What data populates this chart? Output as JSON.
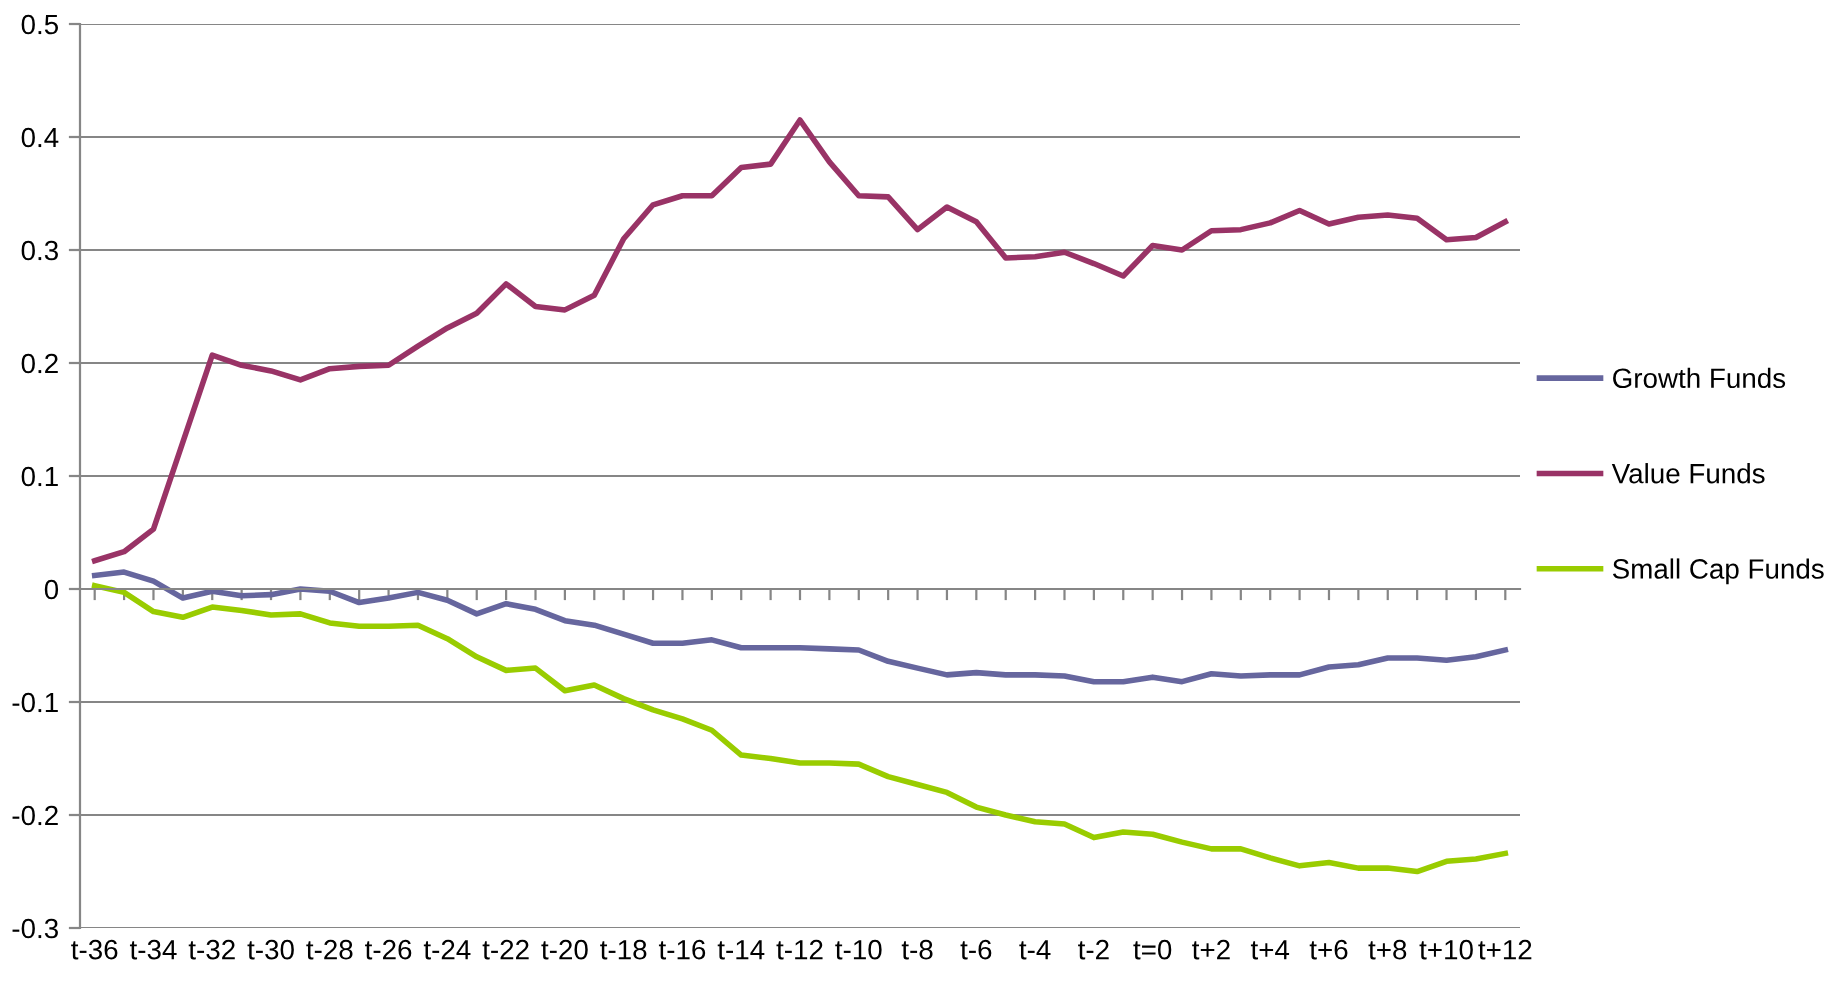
{
  "chart_data": {
    "type": "line",
    "categories": [
      "t-36",
      null,
      "t-34",
      null,
      "t-32",
      null,
      "t-30",
      null,
      "t-28",
      null,
      "t-26",
      null,
      "t-24",
      null,
      "t-22",
      null,
      "t-20",
      null,
      "t-18",
      null,
      "t-16",
      null,
      "t-14",
      null,
      "t-12",
      null,
      "t-10",
      null,
      "t-8",
      null,
      "t-6",
      null,
      "t-4",
      null,
      "t-2",
      null,
      "t=0",
      null,
      "t+2",
      null,
      "t+4",
      null,
      "t+6",
      null,
      "t+8",
      null,
      "t+10",
      null,
      "t+12"
    ],
    "series": [
      {
        "name": "Growth Funds",
        "color": "#66669e",
        "values": [
          0.012,
          0.015,
          0.007,
          -0.008,
          -0.002,
          -0.006,
          -0.005,
          0.0,
          -0.002,
          -0.012,
          -0.008,
          -0.003,
          -0.01,
          -0.022,
          -0.013,
          -0.018,
          -0.028,
          -0.032,
          -0.04,
          -0.048,
          -0.048,
          -0.045,
          -0.052,
          -0.052,
          -0.052,
          -0.053,
          -0.054,
          -0.064,
          -0.07,
          -0.076,
          -0.074,
          -0.076,
          -0.076,
          -0.077,
          -0.082,
          -0.082,
          -0.078,
          -0.082,
          -0.075,
          -0.077,
          -0.076,
          -0.076,
          -0.069,
          -0.067,
          -0.061,
          -0.061,
          -0.063,
          -0.06,
          -0.054
        ]
      },
      {
        "name": "Value Funds",
        "color": "#993366",
        "values": [
          0.025,
          0.033,
          0.053,
          0.13,
          0.207,
          0.198,
          0.193,
          0.185,
          0.195,
          0.197,
          0.198,
          0.215,
          0.231,
          0.244,
          0.27,
          0.25,
          0.247,
          0.26,
          0.31,
          0.34,
          0.348,
          0.348,
          0.373,
          0.376,
          0.415,
          0.378,
          0.348,
          0.347,
          0.318,
          0.338,
          0.325,
          0.293,
          0.294,
          0.298,
          0.288,
          0.277,
          0.304,
          0.3,
          0.317,
          0.318,
          0.324,
          0.335,
          0.323,
          0.329,
          0.331,
          0.328,
          0.309,
          0.311,
          0.325
        ]
      },
      {
        "name": "Small Cap Funds",
        "color": "#99cc00",
        "values": [
          0.003,
          -0.003,
          -0.02,
          -0.025,
          -0.016,
          -0.019,
          -0.023,
          -0.022,
          -0.03,
          -0.033,
          -0.033,
          -0.032,
          -0.044,
          -0.06,
          -0.072,
          -0.07,
          -0.09,
          -0.085,
          -0.097,
          -0.107,
          -0.115,
          -0.125,
          -0.147,
          -0.15,
          -0.154,
          -0.154,
          -0.155,
          -0.166,
          -0.173,
          -0.18,
          -0.193,
          -0.2,
          -0.206,
          -0.208,
          -0.22,
          -0.215,
          -0.217,
          -0.224,
          -0.23,
          -0.23,
          -0.238,
          -0.245,
          -0.242,
          -0.247,
          -0.247,
          -0.25,
          -0.241,
          -0.239,
          -0.234
        ]
      }
    ],
    "ylim": [
      -0.3,
      0.5
    ],
    "yticks": [
      -0.3,
      -0.2,
      -0.1,
      0,
      0.1,
      0.2,
      0.3,
      0.4,
      0.5
    ],
    "grid": "y",
    "legend": "right",
    "marker": "none",
    "line_style": "solid"
  }
}
